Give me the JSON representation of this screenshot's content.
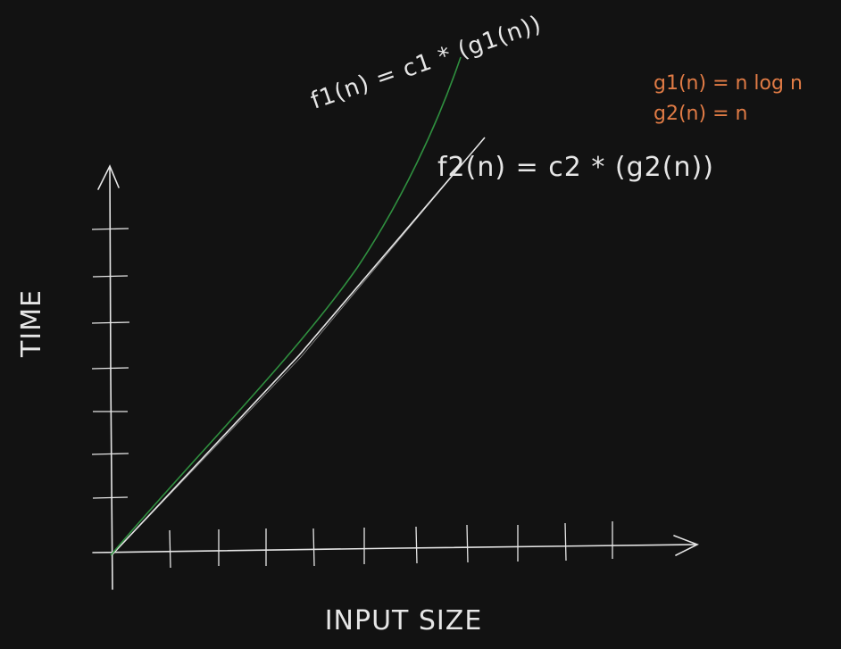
{
  "axes": {
    "x_label": "INPUT SIZE",
    "y_label": "TIME"
  },
  "curves": {
    "f1_label": "f1(n) = c1 * (g1(n))",
    "f2_label": "f2(n) = c2 * (g2(n))"
  },
  "definitions": {
    "g1": "g1(n) = n log n",
    "g2": "g2(n) = n"
  },
  "colors": {
    "background": "#121212",
    "axis": "#e6e6e6",
    "curve_f1": "#2f8f3f",
    "curve_f2": "#e6e6e6",
    "definitions": "#e07b45"
  }
}
